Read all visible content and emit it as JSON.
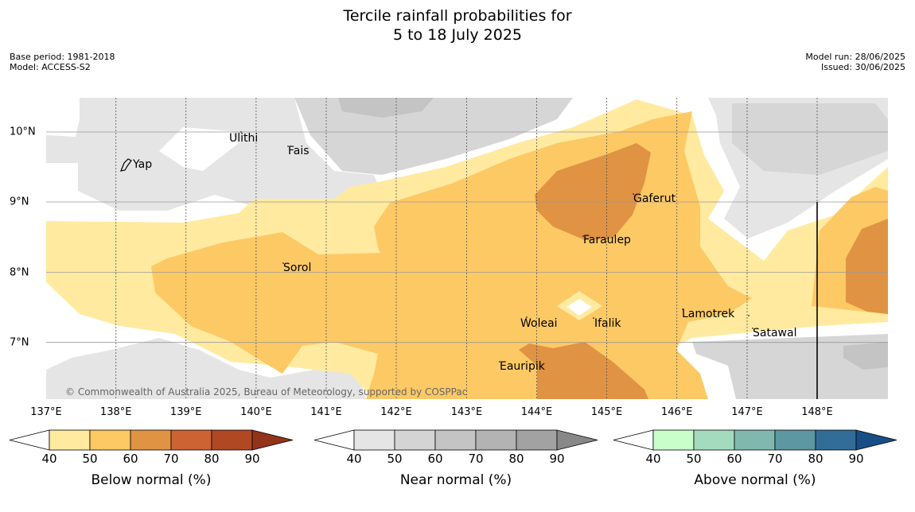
{
  "title_line1": "Tercile rainfall probabilities for",
  "title_line2": "5 to 18 July 2025",
  "meta_left": [
    "Base period: 1981-2018",
    "Model: ACCESS-S2"
  ],
  "meta_right": [
    "Model run: 28/06/2025",
    "Issued: 30/06/2025"
  ],
  "longitudes": [
    "137°E",
    "138°E",
    "139°E",
    "140°E",
    "141°E",
    "142°E",
    "143°E",
    "144°E",
    "145°E",
    "146°E",
    "147°E",
    "148°E"
  ],
  "latitudes": [
    "10°N",
    "9°N",
    "8°N",
    "7°N"
  ],
  "places": [
    {
      "name": "Ulithi"
    },
    {
      "name": "Fais"
    },
    {
      "name": "Yap"
    },
    {
      "name": "Gaferut"
    },
    {
      "name": "Faraulep"
    },
    {
      "name": "Sorol"
    },
    {
      "name": "Lamotrek"
    },
    {
      "name": "Woleai"
    },
    {
      "name": "Ifalik"
    },
    {
      "name": "Satawal"
    },
    {
      "name": "Eauripik"
    }
  ],
  "copyright": "© Commonwealth of Australia 2025, Bureau of Meteorology, supported by COSPPac",
  "colorbars": [
    {
      "label": "Below normal (%)",
      "ticks": [
        "40",
        "50",
        "60",
        "70",
        "80",
        "90"
      ],
      "colors": [
        "#ffeaa0",
        "#fdc964",
        "#e09342",
        "#cd6233",
        "#b04824",
        "#93331b"
      ]
    },
    {
      "label": "Near normal (%)",
      "ticks": [
        "40",
        "50",
        "60",
        "70",
        "80",
        "90"
      ],
      "colors": [
        "#e5e5e5",
        "#d4d4d4",
        "#c4c4c4",
        "#b3b3b3",
        "#a2a2a2",
        "#888888"
      ]
    },
    {
      "label": "Above normal (%)",
      "ticks": [
        "40",
        "50",
        "60",
        "70",
        "80",
        "90"
      ],
      "colors": [
        "#c9fdc9",
        "#a4dbbf",
        "#80b8b0",
        "#5c97a2",
        "#326d98",
        "#174e86"
      ]
    }
  ]
}
